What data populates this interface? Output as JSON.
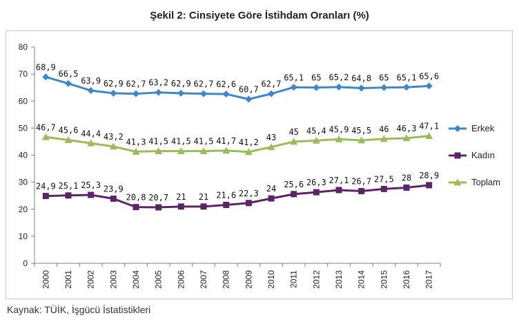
{
  "title": "Şekil 2: Cinsiyete Göre İstihdam Oranları (%)",
  "source": "Kaynak: TÜİK, İşgücü İstatistikleri",
  "chart_data": {
    "type": "line",
    "x": [
      "2000",
      "2001",
      "2002",
      "2003",
      "2004",
      "2005",
      "2006",
      "2007",
      "2008",
      "2009",
      "2010",
      "2011",
      "2012",
      "2013",
      "2014",
      "2015",
      "2016",
      "2017"
    ],
    "ylim": [
      0,
      80
    ],
    "yticks": [
      0,
      10,
      20,
      30,
      40,
      50,
      60,
      70,
      80
    ],
    "grid": false,
    "legend_position": "right",
    "series": [
      {
        "name": "Erkek",
        "color": "#3f86c6",
        "marker": "diamond",
        "values": [
          68.9,
          66.5,
          63.9,
          62.9,
          62.7,
          63.2,
          62.9,
          62.7,
          62.6,
          60.7,
          62.7,
          65.1,
          65,
          65.2,
          64.8,
          65,
          65.1,
          65.6
        ],
        "labels": [
          "68,9",
          "66,5",
          "63,9",
          "62,9",
          "62,7",
          "63,2",
          "62,9",
          "62,7",
          "62,6",
          "60,7",
          "62,7",
          "65,1",
          "65",
          "65,2",
          "64,8",
          "65",
          "65,1",
          "65,6"
        ]
      },
      {
        "name": "Kadın",
        "color": "#5c2466",
        "marker": "square",
        "values": [
          24.9,
          25.1,
          25.3,
          23.9,
          20.8,
          20.7,
          21,
          21,
          21.6,
          22.3,
          24,
          25.6,
          26.3,
          27.1,
          26.7,
          27.5,
          28,
          28.9
        ],
        "labels": [
          "24,9",
          "25,1",
          "25,3",
          "23,9",
          "20,8",
          "20,7",
          "21",
          "21",
          "21,6",
          "22,3",
          "24",
          "25,6",
          "26,3",
          "27,1",
          "26,7",
          "27,5",
          "28",
          "28,9"
        ]
      },
      {
        "name": "Toplam",
        "color": "#9bbb59",
        "marker": "triangle",
        "values": [
          46.7,
          45.6,
          44.4,
          43.2,
          41.3,
          41.5,
          41.5,
          41.5,
          41.7,
          41.2,
          43,
          45,
          45.4,
          45.9,
          45.5,
          46,
          46.3,
          47.1
        ],
        "labels": [
          "46,7",
          "45,6",
          "44,4",
          "43,2",
          "41,3",
          "41,5",
          "41,5",
          "41,5",
          "41,7",
          "41,2",
          "43",
          "45",
          "45,4",
          "45,9",
          "45,5",
          "46",
          "46,3",
          "47,1"
        ]
      }
    ]
  }
}
